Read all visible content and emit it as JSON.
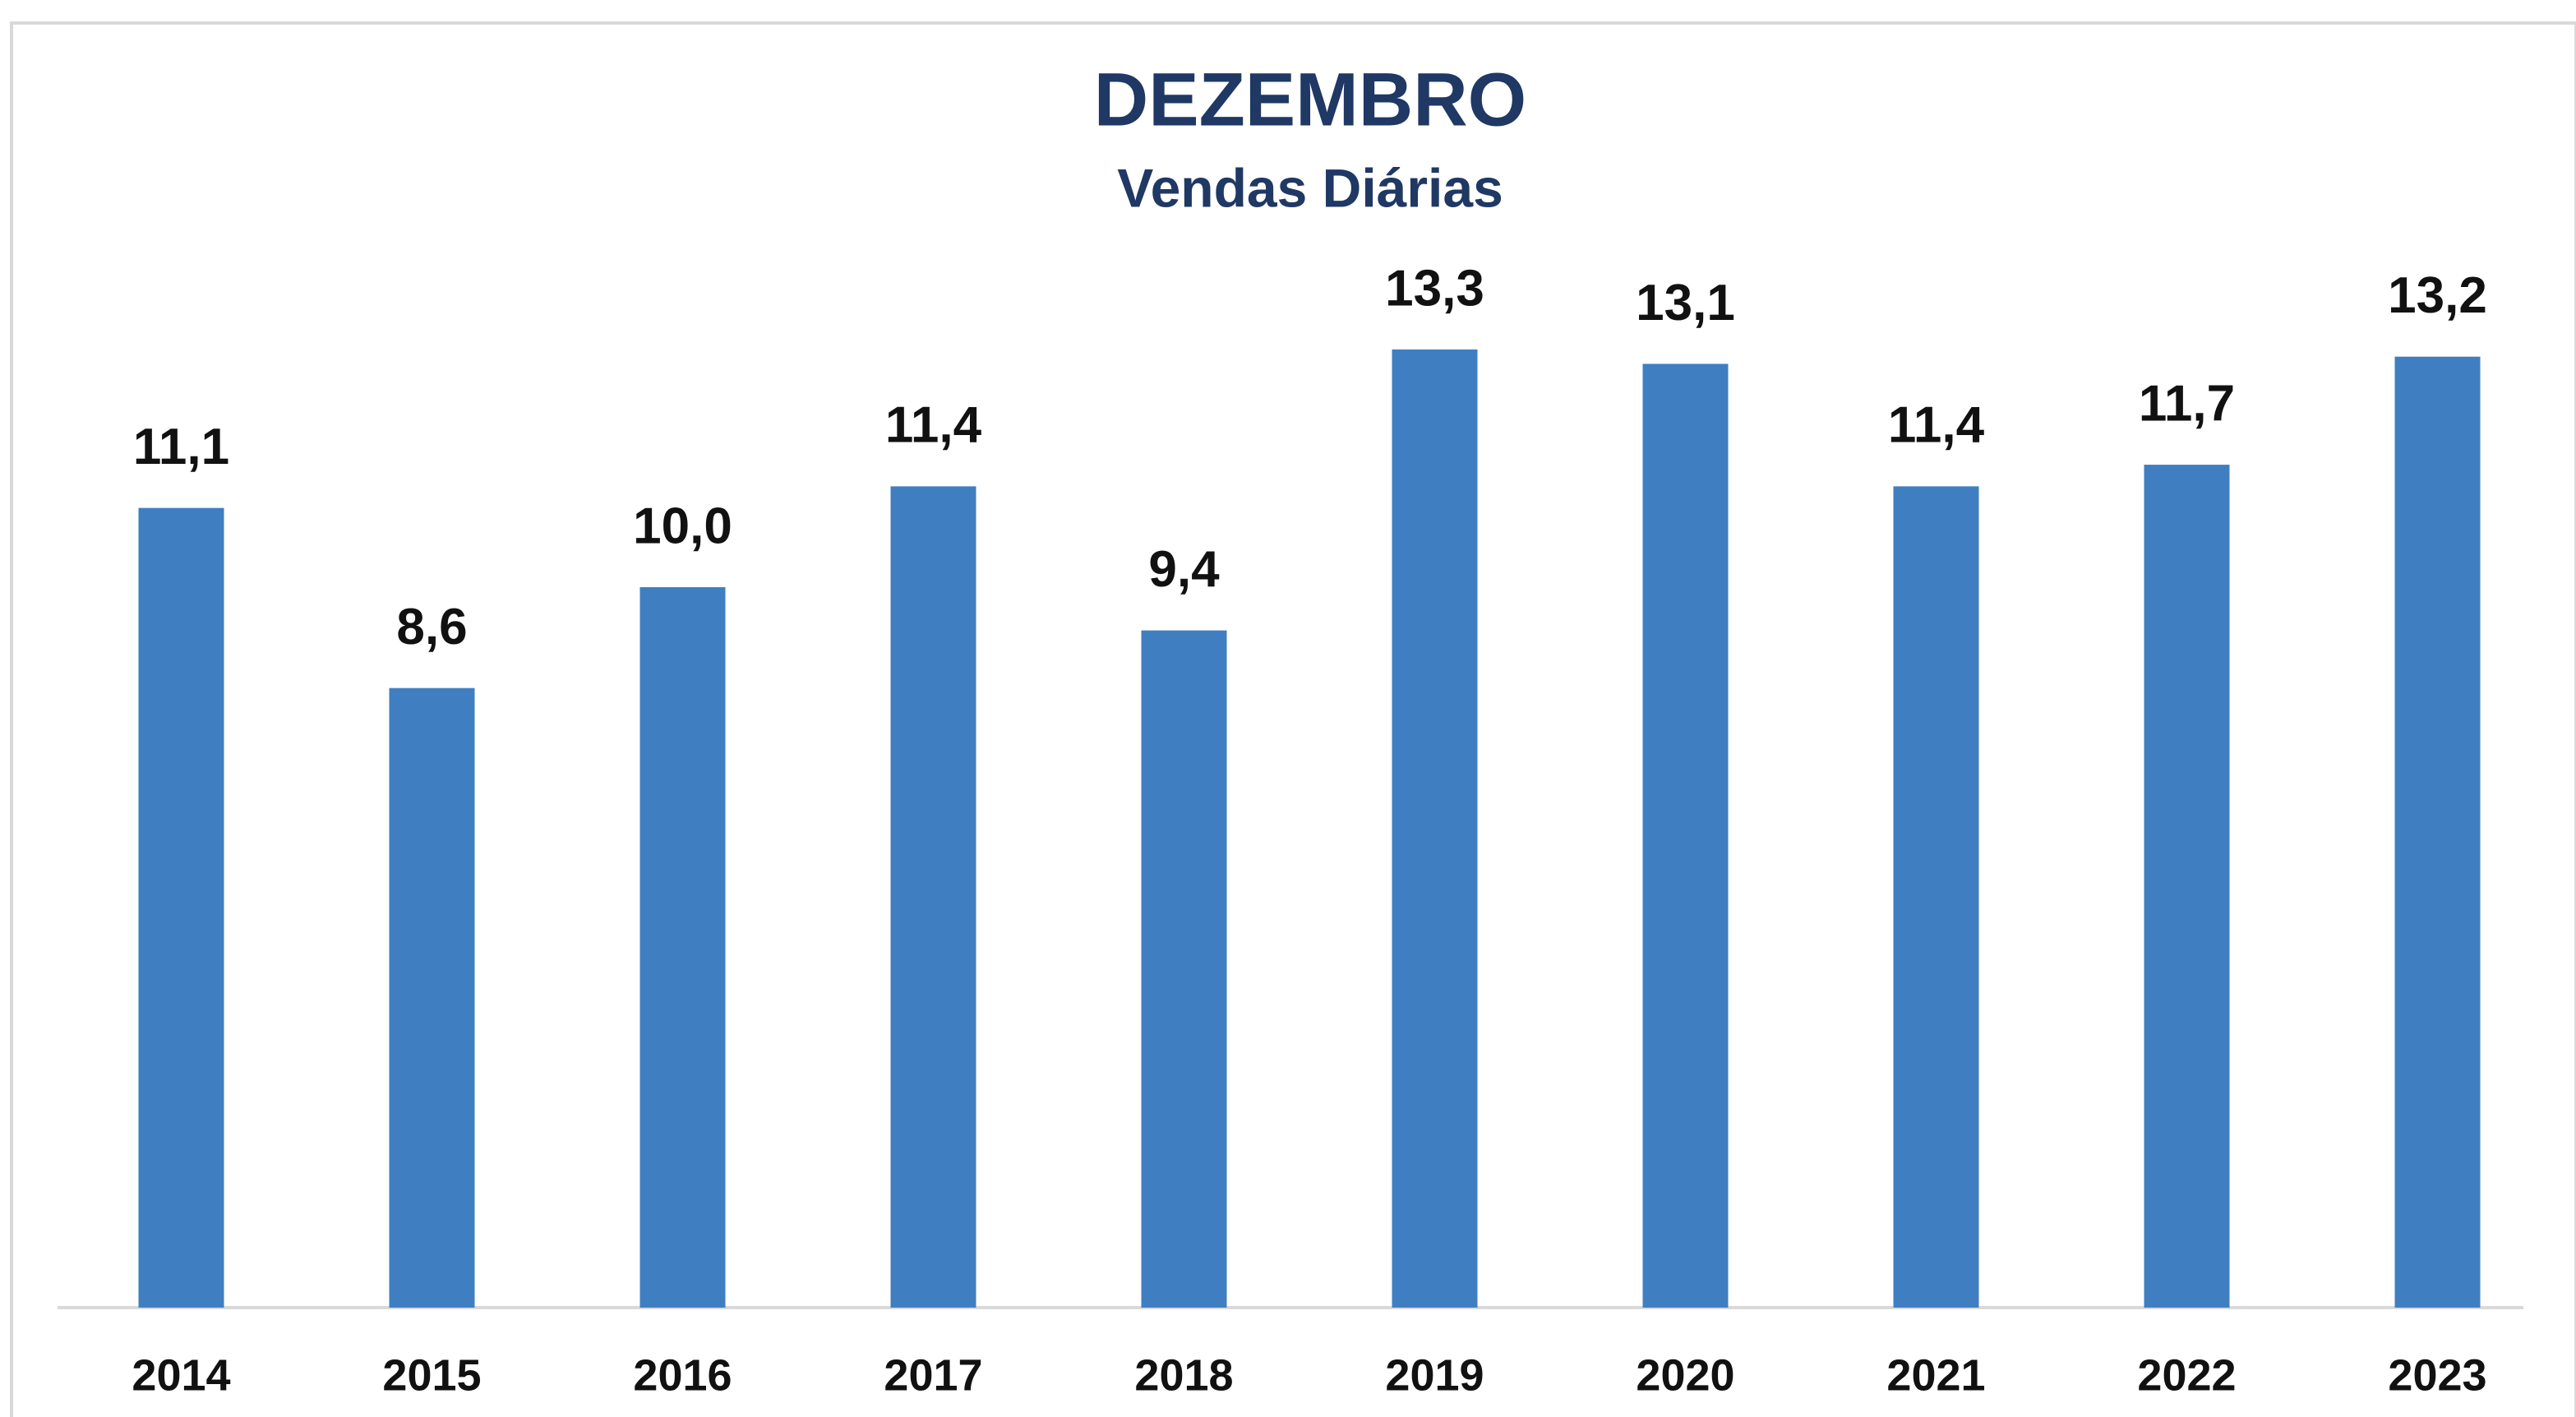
{
  "chart_data": {
    "type": "bar",
    "title": "DEZEMBRO",
    "subtitle": "Vendas Diárias",
    "categories": [
      "2014",
      "2015",
      "2016",
      "2017",
      "2018",
      "2019",
      "2020",
      "2021",
      "2022",
      "2023"
    ],
    "values": [
      11.1,
      8.6,
      10.0,
      11.4,
      9.4,
      13.3,
      13.1,
      11.4,
      11.7,
      13.2
    ],
    "value_labels": [
      "11,1",
      "8,6",
      "10,0",
      "11,4",
      "9,4",
      "13,3",
      "13,1",
      "11,4",
      "11,7",
      "13,2"
    ],
    "color": "#3f7fc1",
    "ylim": [
      0,
      15
    ]
  }
}
